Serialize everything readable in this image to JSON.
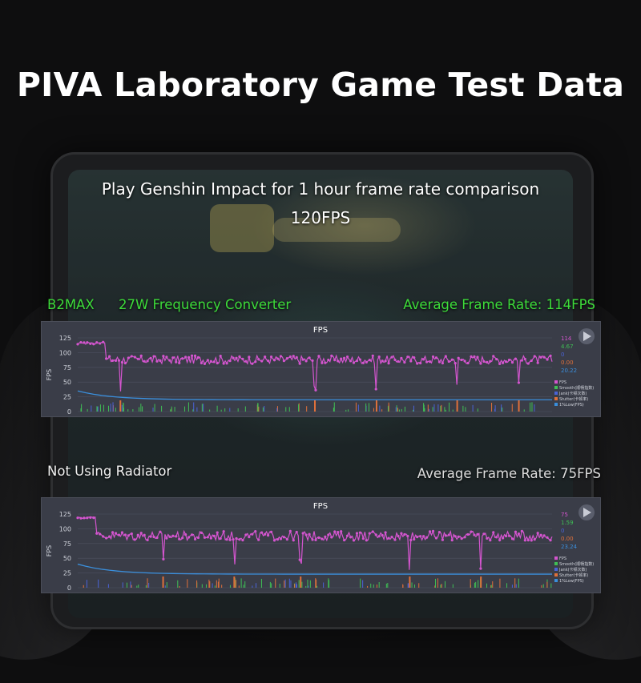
{
  "title": "PIVA Laboratory Game Test Data",
  "subtitle": "Play Genshin Impact for 1 hour frame rate comparison",
  "target_fps": "120FPS",
  "comparison_top": {
    "device": "B2MAX",
    "accessory": "27W Frequency Converter",
    "average": "Average Frame Rate: 114FPS"
  },
  "comparison_bottom": {
    "device": "Not Using Radiator",
    "average": "Average Frame Rate: 75FPS"
  },
  "colors": {
    "fps": "#d455cf",
    "smooth": "#3fbf55",
    "jank": "#4a63d8",
    "stutter": "#e0703a",
    "low": "#3a8fdc",
    "highlight_green": "#3ddc3a"
  },
  "chart_data": [
    {
      "type": "line",
      "title": "FPS",
      "ylabel": "FPS",
      "ylim": [
        0,
        125
      ],
      "yticks": [
        "125",
        "100",
        "75",
        "50",
        "25",
        "0"
      ],
      "legend": [
        "FPS",
        "Smooth(顺畅指数)",
        "Jank(卡顿次数)",
        "Stutter(卡顿率)",
        "1%Low(FPS)"
      ],
      "side_values": [
        "114",
        "4.67",
        "0",
        "0.00",
        "20.22"
      ],
      "series": [
        {
          "name": "FPS",
          "base": 88,
          "spread": 7,
          "drops": [
            0.09,
            0.5,
            0.63,
            0.8,
            0.93
          ],
          "spike": [
            118,
            0.03
          ]
        },
        {
          "name": "1%Low(FPS)",
          "from": 35,
          "to": 20
        }
      ]
    },
    {
      "type": "line",
      "title": "FPS",
      "ylabel": "FPS",
      "ylim": [
        0,
        125
      ],
      "yticks": [
        "125",
        "100",
        "75",
        "50",
        "25",
        "0"
      ],
      "legend": [
        "FPS",
        "Smooth(顺畅指数)",
        "Jank(卡顿次数)",
        "Stutter(卡顿率)",
        "1%Low(FPS)"
      ],
      "side_values": [
        "75",
        "1.59",
        "0",
        "0.00",
        "23.24"
      ],
      "series": [
        {
          "name": "FPS",
          "base": 88,
          "spread": 8,
          "drops": [
            0.18,
            0.33,
            0.47,
            0.7,
            0.85
          ],
          "spike": [
            120,
            0.01
          ]
        },
        {
          "name": "1%Low(FPS)",
          "from": 40,
          "to": 23
        }
      ]
    }
  ]
}
